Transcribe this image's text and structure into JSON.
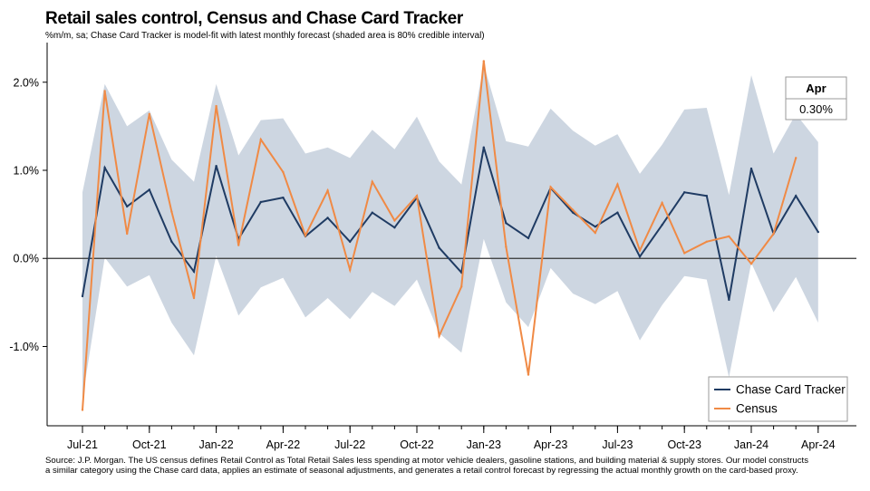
{
  "header": {
    "title": "Retail sales control, Census and Chase Card Tracker",
    "subtitle": "%m/m, sa; Chase Card Tracker is model-fit with latest monthly forecast (shaded area is 80% credible interval)"
  },
  "callout": {
    "month": "Apr",
    "value": "0.30%"
  },
  "footer": {
    "line1": "Source: J.P. Morgan. The US census defines Retail Control as Total Retail Sales less spending at motor vehicle dealers, gasoline stations, and building material & supply stores. Our model constructs",
    "line2": "a similar category using the Chase card data, applies an estimate of seasonal adjustments, and generates a retail control forecast by regressing the actual monthly growth on the card-based proxy."
  },
  "colors": {
    "tracker": "#1f3b63",
    "census": "#f08a45",
    "band": "#cdd6e1",
    "zero": "#333333"
  },
  "chart_data": {
    "type": "line",
    "ylabel": "%m/m",
    "ylim": [
      -1.9,
      2.45
    ],
    "yticks": [
      -1.0,
      0.0,
      1.0,
      2.0
    ],
    "ytick_labels": [
      "-1.0%",
      "0.0%",
      "1.0%",
      "2.0%"
    ],
    "xticks": [
      "Jul-21",
      "Oct-21",
      "Jan-22",
      "Apr-22",
      "Jul-22",
      "Oct-22",
      "Jan-23",
      "Apr-23",
      "Jul-23",
      "Oct-23",
      "Jan-24",
      "Apr-24"
    ],
    "xtick_positions": [
      0,
      3,
      6,
      9,
      12,
      15,
      18,
      21,
      24,
      27,
      30,
      33
    ],
    "months": [
      "Jul-21",
      "Aug-21",
      "Sep-21",
      "Oct-21",
      "Nov-21",
      "Dec-21",
      "Jan-22",
      "Feb-22",
      "Mar-22",
      "Apr-22",
      "May-22",
      "Jun-22",
      "Jul-22",
      "Aug-22",
      "Sep-22",
      "Oct-22",
      "Nov-22",
      "Dec-22",
      "Jan-23",
      "Feb-23",
      "Mar-23",
      "Apr-23",
      "May-23",
      "Jun-23",
      "Jul-23",
      "Aug-23",
      "Sep-23",
      "Oct-23",
      "Nov-23",
      "Dec-23",
      "Jan-24",
      "Feb-24",
      "Mar-24",
      "Apr-24"
    ],
    "legend_position": "bottom-right",
    "series": [
      {
        "name": "Chase Card Tracker",
        "color": "#1f3b63",
        "values": [
          -0.43,
          1.03,
          0.59,
          0.78,
          0.19,
          -0.15,
          1.05,
          0.22,
          0.64,
          0.69,
          0.25,
          0.46,
          0.19,
          0.52,
          0.35,
          0.69,
          0.12,
          -0.16,
          1.26,
          0.4,
          0.23,
          0.8,
          0.52,
          0.36,
          0.52,
          0.02,
          0.38,
          0.75,
          0.71,
          -0.47,
          1.02,
          0.28,
          0.71,
          0.3
        ]
      },
      {
        "name": "Census",
        "color": "#f08a45",
        "values": [
          -1.72,
          1.9,
          0.28,
          1.64,
          0.53,
          -0.45,
          1.73,
          0.15,
          1.35,
          0.98,
          0.26,
          0.77,
          -0.13,
          0.87,
          0.43,
          0.71,
          -0.88,
          -0.32,
          2.24,
          0.13,
          -1.32,
          0.81,
          0.55,
          0.29,
          0.84,
          0.09,
          0.63,
          0.06,
          0.19,
          0.25,
          -0.06,
          0.28,
          1.14,
          null
        ]
      }
    ],
    "band": {
      "name": "80% credible interval",
      "upper": [
        0.75,
        1.98,
        1.5,
        1.68,
        1.12,
        0.87,
        1.98,
        1.17,
        1.57,
        1.59,
        1.19,
        1.26,
        1.14,
        1.46,
        1.24,
        1.61,
        1.1,
        0.84,
        2.2,
        1.33,
        1.27,
        1.7,
        1.45,
        1.28,
        1.41,
        0.96,
        1.29,
        1.69,
        1.71,
        0.72,
        2.08,
        1.19,
        1.64,
        1.32
      ],
      "lower": [
        -1.59,
        0.01,
        -0.32,
        -0.19,
        -0.73,
        -1.1,
        0.03,
        -0.65,
        -0.33,
        -0.22,
        -0.67,
        -0.45,
        -0.69,
        -0.38,
        -0.54,
        -0.24,
        -0.85,
        -1.07,
        0.22,
        -0.5,
        -0.78,
        -0.11,
        -0.4,
        -0.52,
        -0.37,
        -0.93,
        -0.53,
        -0.2,
        -0.24,
        -1.35,
        -0.05,
        -0.61,
        -0.21,
        -0.73
      ]
    }
  }
}
